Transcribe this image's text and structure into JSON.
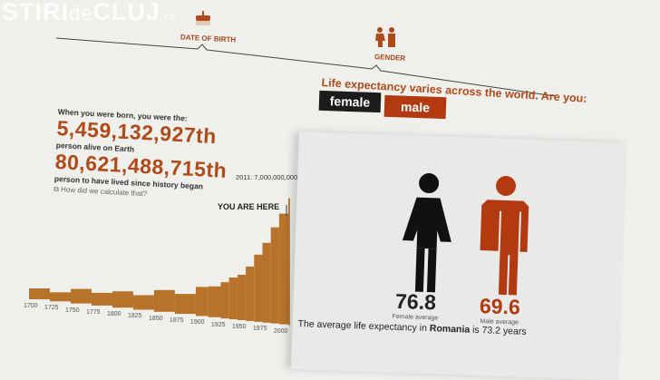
{
  "watermark": {
    "main": "STIRI",
    "de": "de",
    "city": "CLUJ",
    "tld": ".ro"
  },
  "steps": [
    {
      "label": "DATE OF BIRTH",
      "icon": "birthday-cake-icon"
    },
    {
      "label": "GENDER",
      "icon": "gender-figures-icon"
    }
  ],
  "birth": {
    "intro": "When you were born, you were the:",
    "alive_rank": "5,459,132,927th",
    "alive_caption": "person alive on Earth",
    "ever_rank": "80,621,488,715th",
    "ever_caption": "person to have lived since history began",
    "calc_link": "How did we calculate that?"
  },
  "gender": {
    "question": "Life expectancy varies across the world. Are you:",
    "female_label": "female",
    "male_label": "male",
    "female_value": "76.8",
    "female_caption": "Female average",
    "male_value": "69.6",
    "male_caption": "Male average",
    "summary_prefix": "The average life expectancy in ",
    "country": "Romania",
    "summary_suffix": " is 73.2 years"
  },
  "colors": {
    "accent": "#b04a18",
    "male_button": "#b33a10",
    "female_button": "#1c1c1c",
    "bars": "#b8732a"
  },
  "chart_data": {
    "type": "bar",
    "annotation_top": "2011: 7,000,000,000",
    "annotation_marker": "YOU ARE HERE",
    "x_ticks": [
      "1700",
      "1725",
      "1750",
      "1775",
      "1800",
      "1825",
      "1850",
      "1875",
      "1900",
      "1925",
      "1950",
      "1975",
      "2000"
    ],
    "x": [
      1700,
      1725,
      1750,
      1775,
      1800,
      1825,
      1850,
      1875,
      1900,
      1915,
      1930,
      1940,
      1950,
      1960,
      1970,
      1980,
      1990,
      2000,
      2011
    ],
    "values": [
      0.6,
      0.5,
      0.8,
      0.7,
      0.9,
      0.8,
      1.2,
      1.1,
      1.6,
      1.7,
      2.0,
      2.3,
      2.5,
      3.0,
      3.7,
      4.4,
      5.3,
      6.1,
      7.0
    ],
    "y_unit": "billions of people"
  }
}
